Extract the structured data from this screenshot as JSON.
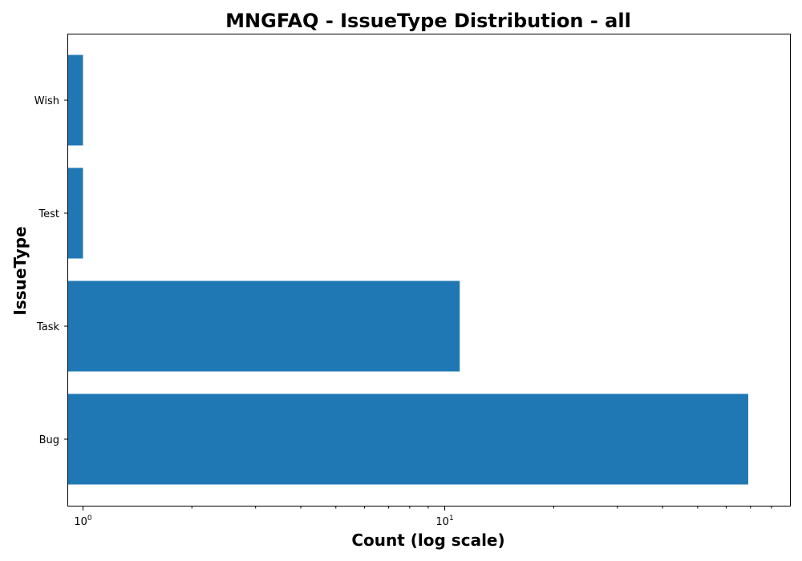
{
  "chart_data": {
    "type": "bar",
    "orientation": "horizontal",
    "title": "MNGFAQ - IssueType Distribution - all",
    "xlabel": "Count (log scale)",
    "ylabel": "IssueType",
    "xscale": "log",
    "xlim": [
      0.91,
      90
    ],
    "grid": false,
    "categories": [
      "Bug",
      "Task",
      "Test",
      "Wish"
    ],
    "values": [
      69,
      11,
      1,
      1
    ],
    "bar_color": "#1f77b4",
    "x_major_ticks": [
      {
        "value": 1,
        "base": "10",
        "exponent": "0"
      },
      {
        "value": 10,
        "base": "10",
        "exponent": "1"
      }
    ],
    "x_minor_ticks": [
      2,
      3,
      4,
      5,
      6,
      7,
      8,
      9,
      20,
      30,
      40,
      50,
      60,
      70,
      80
    ]
  }
}
